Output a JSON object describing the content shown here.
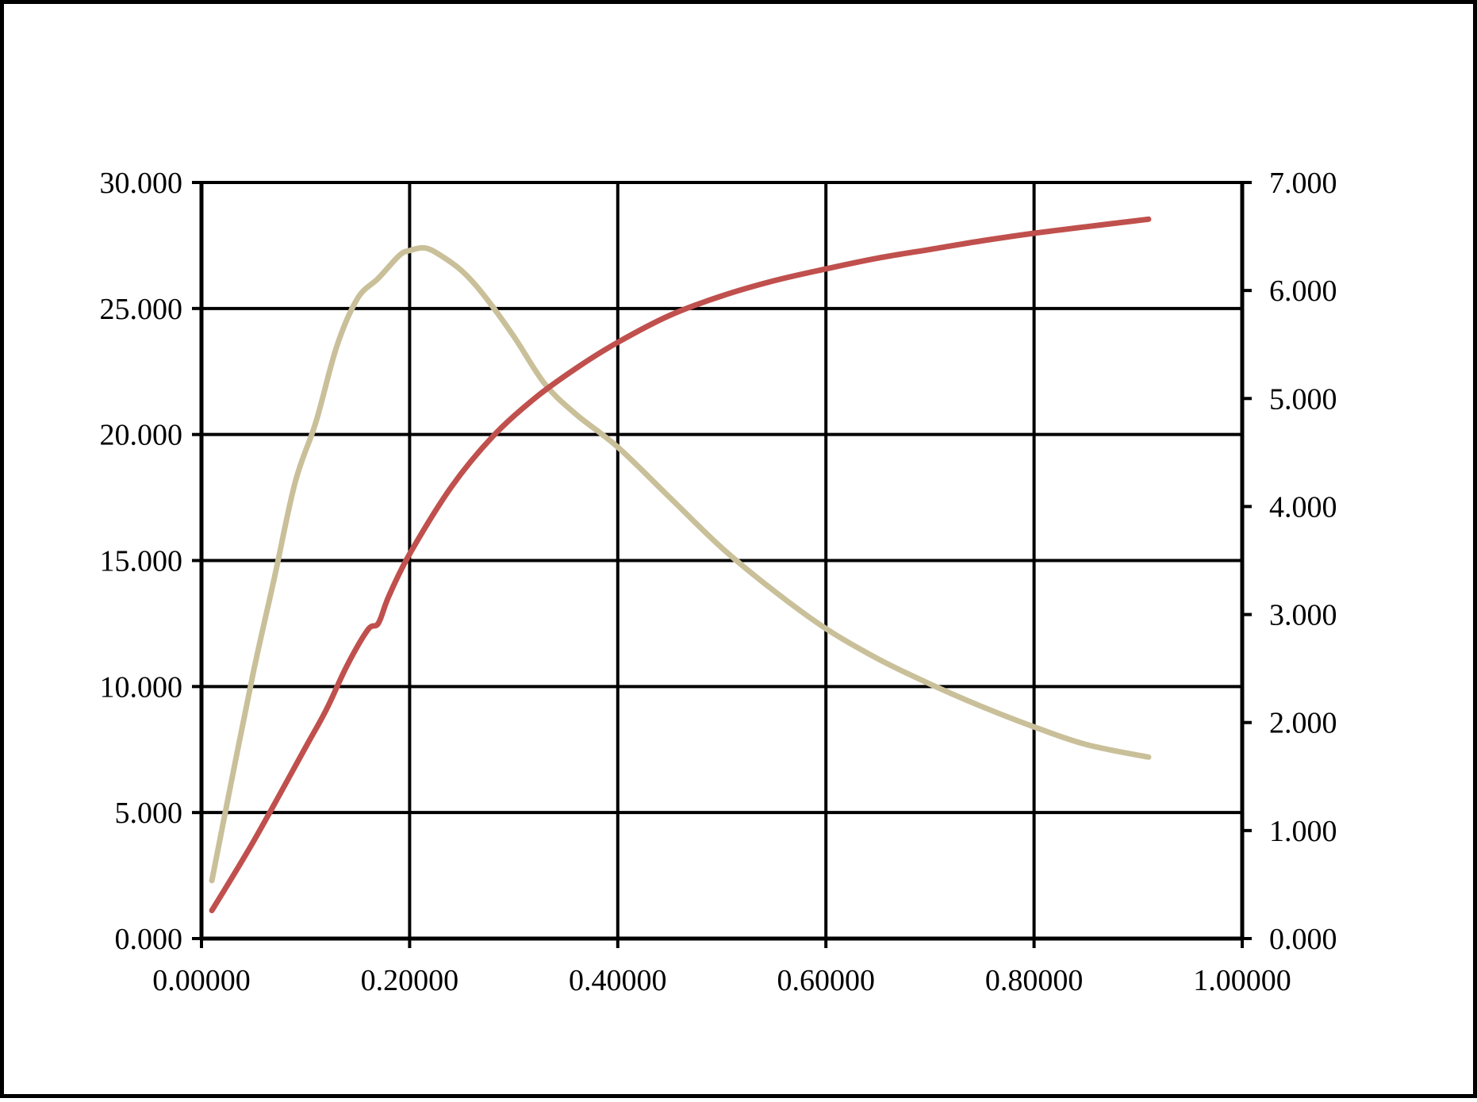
{
  "chart_data": {
    "type": "line",
    "title": "",
    "xlabel": "",
    "ylabel": "",
    "y2label": "",
    "grid": true,
    "legend": "none",
    "xlim": [
      0,
      1
    ],
    "ylim": [
      0,
      30
    ],
    "y2lim": [
      0,
      7
    ],
    "x_ticks": [
      "0.00000",
      "0.20000",
      "0.40000",
      "0.60000",
      "0.80000",
      "1.00000"
    ],
    "y_ticks": [
      "0.000",
      "5.000",
      "10.000",
      "15.000",
      "20.000",
      "25.000",
      "30.000"
    ],
    "y2_ticks": [
      "0.000",
      "1.000",
      "2.000",
      "3.000",
      "4.000",
      "5.000",
      "6.000",
      "7.000"
    ],
    "series": [
      {
        "axis": "left",
        "color": "#c9c09a",
        "x": [
          0.01,
          0.03,
          0.05,
          0.07,
          0.09,
          0.11,
          0.13,
          0.15,
          0.17,
          0.19,
          0.2,
          0.215,
          0.23,
          0.25,
          0.27,
          0.3,
          0.33,
          0.36,
          0.4,
          0.45,
          0.5,
          0.55,
          0.6,
          0.65,
          0.7,
          0.75,
          0.8,
          0.85,
          0.91
        ],
        "values": [
          2.3,
          6.5,
          10.6,
          14.3,
          18.1,
          20.5,
          23.5,
          25.4,
          26.2,
          27.1,
          27.3,
          27.4,
          27.1,
          26.5,
          25.6,
          23.9,
          22.0,
          20.8,
          19.5,
          17.5,
          15.5,
          13.8,
          12.3,
          11.1,
          10.1,
          9.2,
          8.4,
          7.7,
          7.2
        ]
      },
      {
        "axis": "right",
        "color": "#c0504d",
        "x": [
          0.01,
          0.05,
          0.1,
          0.12,
          0.14,
          0.16,
          0.17,
          0.18,
          0.2,
          0.24,
          0.28,
          0.32,
          0.36,
          0.4,
          0.45,
          0.5,
          0.55,
          0.6,
          0.65,
          0.7,
          0.75,
          0.8,
          0.85,
          0.91
        ],
        "values": [
          0.26,
          0.9,
          1.77,
          2.12,
          2.53,
          2.86,
          2.92,
          3.17,
          3.56,
          4.18,
          4.65,
          5.0,
          5.28,
          5.52,
          5.77,
          5.95,
          6.09,
          6.2,
          6.3,
          6.38,
          6.46,
          6.53,
          6.59,
          6.66
        ]
      }
    ]
  }
}
